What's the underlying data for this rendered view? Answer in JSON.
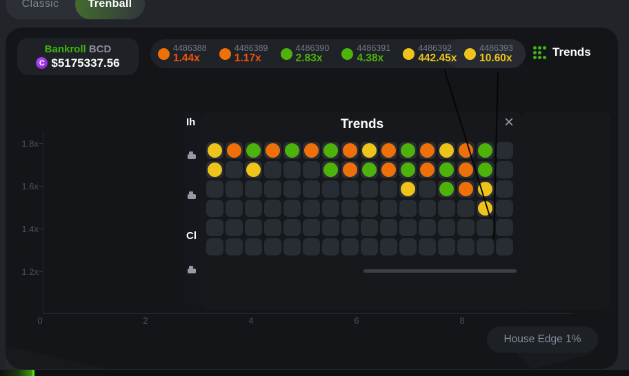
{
  "tabs": {
    "classic": "Classic",
    "trenball": "Trenball"
  },
  "bankroll": {
    "label": "Bankroll",
    "currency": "BCD",
    "coin_letter": "C",
    "amount": "$5175337.56"
  },
  "results": [
    {
      "id": "4486388",
      "multiplier": "1.44x",
      "color": "orange"
    },
    {
      "id": "4486389",
      "multiplier": "1.17x",
      "color": "orange"
    },
    {
      "id": "4486390",
      "multiplier": "2.83x",
      "color": "green"
    },
    {
      "id": "4486391",
      "multiplier": "4.38x",
      "color": "green"
    },
    {
      "id": "4486392",
      "multiplier": "442.45x",
      "color": "yellow"
    },
    {
      "id": "4486393",
      "multiplier": "10.60x",
      "color": "yellow"
    }
  ],
  "trends_button": {
    "label": "Trends"
  },
  "modal": {
    "title": "Trends",
    "close_glyph": "×",
    "grid_rows": [
      "YOGOGOGOYOGOYOG.",
      "Y.Y...GOGOGOGOG.",
      "..........Y.GOY.",
      "..............Y.",
      "................",
      "................"
    ]
  },
  "occluded_panel": {
    "fragments": [
      "Ih",
      "Cl"
    ]
  },
  "chart": {
    "y_labels": [
      "1.8x",
      "1.6x",
      "1.4x",
      "1.2x"
    ],
    "x_labels": [
      "0",
      "2",
      "4",
      "6",
      "8"
    ]
  },
  "house_edge": {
    "label": "House Edge 1%"
  },
  "colors": {
    "orange_dot": "#ef7008",
    "orange_text": "#f2530e",
    "green": "#4db30a",
    "yellow": "#eec41a",
    "accent_green": "#3fb318"
  }
}
